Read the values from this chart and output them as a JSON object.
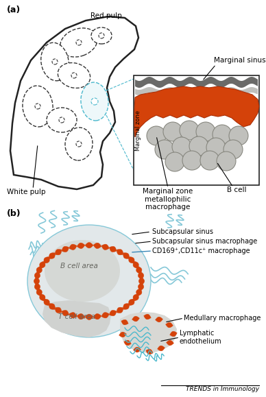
{
  "bg_color": "#ffffff",
  "panel_a_label": "(a)",
  "panel_b_label": "(b)",
  "label_red_pulp": "Red pulp",
  "label_white_pulp": "White pulp",
  "label_marginal_sinus": "Marginal sinus",
  "label_marginal_zone": "Marginal zone",
  "label_mz_macro": "Marginal zone\nmetallophilic\nmacrophage",
  "label_b_cell": "B cell",
  "label_subcapsular_sinus": "Subcapsular sinus",
  "label_subcapsular_macro": "Subcapsular sinus macrophage",
  "label_cd169": "CD169⁺,CD11c⁺ macrophage",
  "label_medullary": "Medullary macrophage",
  "label_lymphatic": "Lymphatic\nendothelium",
  "label_b_cell_area": "B cell area",
  "label_t_cell_area": "T cell area",
  "label_trends": "TRENDS in Immunology",
  "color_orange": "#d4420a",
  "color_gray_light": "#c0c0bc",
  "color_gray_medium": "#8a8a88",
  "color_gray_dark": "#6a6a68",
  "color_teal": "#4ab8cc",
  "color_blue_line": "#3a88b8",
  "color_outline": "#222222",
  "color_bg_white": "#ffffff"
}
